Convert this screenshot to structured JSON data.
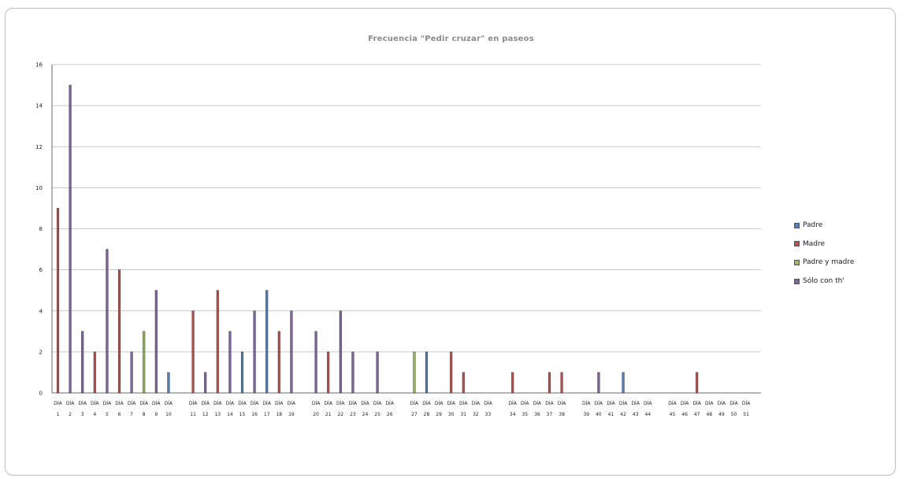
{
  "chart_data": {
    "type": "bar",
    "title": "Frecuencia \"Pedir cruzar\" en paseos",
    "xlabel": "",
    "ylabel": "",
    "ylim": [
      0,
      16
    ],
    "yticks": [
      "0",
      "2",
      "4",
      "6",
      "8",
      "10",
      "12",
      "14",
      "16"
    ],
    "grid": true,
    "legend_position": "right",
    "groups": [
      {
        "labels": [
          "DÍA\n1",
          "DÍA\n2",
          "DÍA\n3",
          "DÍA\n4",
          "DÍA\n5",
          "DÍA\n6",
          "DÍA\n7",
          "DÍA\n8",
          "DÍA\n9",
          "DÍA\n10"
        ]
      },
      {
        "labels": [
          "DÍA\n11",
          "DÍA\n12",
          "DÍA\n13",
          "DÍA\n14",
          "DÍA\n15",
          "DÍA\n16",
          "DÍA\n17",
          "DÍA\n18",
          "DÍA\n19"
        ]
      },
      {
        "labels": [
          "DÍA\n20",
          "DÍA\n21",
          "DÍA\n22",
          "DÍA\n23",
          "DÍA\n24",
          "DÍA\n25",
          "DÍA\n26"
        ]
      },
      {
        "labels": [
          "DÍA\n27",
          "DÍA\n28",
          "DÍA\n29",
          "DÍA\n30",
          "DÍA\n31",
          "DÍA\n32",
          "DÍA\n33"
        ]
      },
      {
        "labels": [
          "DÍA\n34",
          "DÍA\n35",
          "DÍA\n36",
          "DÍA\n37",
          "DÍA\n38"
        ]
      },
      {
        "labels": [
          "DÍA\n39",
          "DÍA\n40",
          "DÍA\n41",
          "DÍA\n42",
          "DÍA\n43",
          "DÍA\n44"
        ]
      },
      {
        "labels": [
          "DÍA\n45",
          "DÍA\n46",
          "DÍA\n47",
          "DÍA\n48",
          "DÍA\n49",
          "DÍA\n50",
          "DÍA\n51"
        ]
      }
    ],
    "series": [
      {
        "name": "Padre",
        "color": "#4f81bd",
        "values": [
          0,
          0,
          0,
          0,
          0,
          0,
          0,
          0,
          0,
          1,
          0,
          0,
          0,
          0,
          2,
          0,
          5,
          0,
          0,
          0,
          0,
          0,
          0,
          0,
          0,
          0,
          0,
          2,
          0,
          0,
          0,
          0,
          0,
          0,
          0,
          0,
          0,
          0,
          0,
          0,
          0,
          1,
          0,
          0,
          0,
          0,
          0,
          0,
          0,
          0,
          0
        ]
      },
      {
        "name": "Madre",
        "color": "#c0504d",
        "values": [
          9,
          0,
          0,
          2,
          0,
          6,
          0,
          0,
          0,
          0,
          4,
          0,
          5,
          0,
          0,
          0,
          0,
          3,
          0,
          0,
          2,
          0,
          0,
          0,
          0,
          0,
          0,
          0,
          0,
          2,
          1,
          0,
          0,
          1,
          0,
          0,
          1,
          1,
          0,
          0,
          0,
          0,
          0,
          0,
          0,
          0,
          1,
          0,
          0,
          0,
          0
        ]
      },
      {
        "name": "Padre y madre",
        "color": "#9bbb59",
        "values": [
          0,
          0,
          0,
          0,
          0,
          0,
          0,
          3,
          0,
          0,
          0,
          0,
          0,
          0,
          0,
          0,
          0,
          0,
          0,
          0,
          0,
          0,
          0,
          0,
          0,
          0,
          2,
          0,
          0,
          0,
          0,
          0,
          0,
          0,
          0,
          0,
          0,
          0,
          0,
          0,
          0,
          0,
          0,
          0,
          0,
          0,
          0,
          0,
          0,
          0,
          0
        ]
      },
      {
        "name": "Sólo con th'",
        "color": "#8064a2",
        "values": [
          0,
          15,
          3,
          0,
          7,
          0,
          2,
          0,
          5,
          0,
          0,
          1,
          0,
          3,
          0,
          4,
          0,
          0,
          4,
          3,
          0,
          4,
          2,
          0,
          2,
          0,
          0,
          0,
          0,
          0,
          0,
          0,
          0,
          0,
          0,
          0,
          0,
          0,
          0,
          1,
          0,
          0,
          0,
          0,
          0,
          0,
          0,
          0,
          0,
          0,
          0
        ]
      }
    ]
  }
}
